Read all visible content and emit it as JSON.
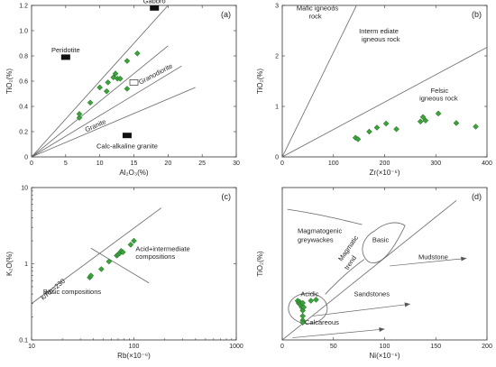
{
  "colors": {
    "point_fill": "#3aa33a",
    "point_stroke": "#1f5e1f",
    "axis": "#333333",
    "reference": "#666666"
  },
  "chart_data": [
    {
      "id": "a",
      "type": "scatter",
      "panel_label": "(a)",
      "xlabel": "Al₂O₃(%)",
      "ylabel": "TiO₂(%)",
      "xlim": [
        0,
        30
      ],
      "ylim": [
        0,
        1.2
      ],
      "xticks": [
        0,
        5,
        10,
        15,
        20,
        25,
        30
      ],
      "yticks": [
        0,
        0.2,
        0.4,
        0.6,
        0.8,
        1.0,
        1.2
      ],
      "ytick_labels": [
        "0",
        "0.2",
        "0.4",
        "0.6",
        "0.8",
        "1.0",
        "1.2"
      ],
      "points": [
        [
          7,
          0.31
        ],
        [
          7,
          0.34
        ],
        [
          8.6,
          0.43
        ],
        [
          10,
          0.55
        ],
        [
          11,
          0.52
        ],
        [
          11.2,
          0.59
        ],
        [
          12,
          0.63
        ],
        [
          12.3,
          0.66
        ],
        [
          12.6,
          0.62
        ],
        [
          13,
          0.62
        ],
        [
          14,
          0.54
        ],
        [
          14,
          0.76
        ],
        [
          15.5,
          0.82
        ]
      ],
      "lines": [
        [
          [
            0,
            0
          ],
          [
            20,
            1.2
          ]
        ],
        [
          [
            0,
            0
          ],
          [
            20,
            0.88
          ]
        ],
        [
          [
            0,
            0
          ],
          [
            22,
            0.72
          ]
        ],
        [
          [
            0,
            0
          ],
          [
            24,
            0.55
          ]
        ]
      ],
      "reference_fields": [
        {
          "label": "Gabbro",
          "x": 18,
          "y": 1.18,
          "marker": "filled-rect"
        },
        {
          "label": "Peridotite",
          "x": 5,
          "y": 0.79,
          "marker": "filled-rect"
        },
        {
          "label": "Granodiorite",
          "x": 15,
          "y": 0.59,
          "marker": "open-rect"
        },
        {
          "label": "Calc-alkaline granite",
          "x": 14,
          "y": 0.17,
          "marker": "filled-rect"
        },
        {
          "label": "Granite",
          "x": 9.5,
          "y": 0.25,
          "marker": "none"
        }
      ]
    },
    {
      "id": "b",
      "type": "scatter",
      "panel_label": "(b)",
      "xlabel": "Zr(×10⁻⁶)",
      "ylabel": "TiO₂(%)",
      "xlim": [
        0,
        400
      ],
      "ylim": [
        0,
        3
      ],
      "xticks": [
        0,
        100,
        200,
        300,
        400
      ],
      "yticks": [
        0,
        1,
        2,
        3
      ],
      "points": [
        [
          143,
          0.38
        ],
        [
          148,
          0.35
        ],
        [
          170,
          0.5
        ],
        [
          185,
          0.58
        ],
        [
          203,
          0.66
        ],
        [
          223,
          0.55
        ],
        [
          270,
          0.7
        ],
        [
          275,
          0.79
        ],
        [
          280,
          0.72
        ],
        [
          305,
          0.86
        ],
        [
          340,
          0.67
        ],
        [
          378,
          0.6
        ]
      ],
      "lines": [
        [
          [
            0,
            0
          ],
          [
            145,
            3
          ]
        ],
        [
          [
            0,
            0
          ],
          [
            400,
            2.17
          ]
        ]
      ],
      "region_labels": [
        {
          "text": "Mafic igneous",
          "x": 28,
          "y": 2.9
        },
        {
          "text": "rock",
          "x": 52,
          "y": 2.74
        },
        {
          "text": "Interm ediate",
          "x": 150,
          "y": 2.45
        },
        {
          "text": "igneous rock",
          "x": 155,
          "y": 2.29
        },
        {
          "text": "Felsic",
          "x": 290,
          "y": 1.27
        },
        {
          "text": "igneous rock",
          "x": 268,
          "y": 1.12
        }
      ]
    },
    {
      "id": "c",
      "type": "scatter",
      "panel_label": "(c)",
      "xlabel": "Rb(×10⁻⁶)",
      "ylabel": "K₂O(%)",
      "xscale": "log",
      "yscale": "log",
      "xlim": [
        10,
        1000
      ],
      "ylim": [
        0.1,
        10
      ],
      "xticks": [
        10,
        100,
        1000
      ],
      "yticks": [
        0.1,
        1,
        10
      ],
      "points": [
        [
          37,
          0.66
        ],
        [
          38,
          0.7
        ],
        [
          48,
          0.85
        ],
        [
          57,
          1.07
        ],
        [
          68,
          1.28
        ],
        [
          70,
          1.32
        ],
        [
          73,
          1.38
        ],
        [
          75,
          1.47
        ],
        [
          78,
          1.42
        ],
        [
          93,
          1.78
        ],
        [
          100,
          2.0
        ]
      ],
      "lines": [
        [
          [
            10,
            0.3
          ],
          [
            185,
            5.4
          ]
        ],
        [
          [
            38,
            1.6
          ],
          [
            140,
            0.56
          ]
        ]
      ],
      "annotations": [
        {
          "text": "Acid+intermediate",
          "x": 104,
          "y": 1.46
        },
        {
          "text": "compositions",
          "x": 104,
          "y": 1.16
        },
        {
          "text": "Basic compositions",
          "x": 13,
          "y": 0.4
        },
        {
          "text": "k/Rb=230",
          "x": 13,
          "y": 0.33,
          "rotate": -40
        }
      ]
    },
    {
      "id": "d",
      "type": "scatter",
      "panel_label": "(d)",
      "xlabel": "Ni(×10⁻⁶)",
      "ylabel": "TiO₂(%)",
      "xlim": [
        0,
        200
      ],
      "ylim": [
        0,
        1.4
      ],
      "xticks": [
        0,
        50,
        100,
        150,
        200
      ],
      "yticks": [],
      "points": [
        [
          15,
          0.36
        ],
        [
          16,
          0.34
        ],
        [
          17,
          0.35
        ],
        [
          17,
          0.33
        ],
        [
          18,
          0.32
        ],
        [
          19,
          0.3
        ],
        [
          20,
          0.34
        ],
        [
          20,
          0.27
        ],
        [
          20,
          0.22
        ],
        [
          20,
          0.18
        ],
        [
          20,
          0.16
        ],
        [
          21,
          0.3
        ],
        [
          28,
          0.36
        ],
        [
          33,
          0.37
        ]
      ],
      "lines": [
        [
          [
            0,
            0
          ],
          [
            170,
            1.28
          ]
        ]
      ],
      "ellipses": [
        {
          "cx": 25,
          "cy": 0.29,
          "rx": 19,
          "ry": 0.14
        }
      ],
      "region_labels": [
        {
          "text": "Magmatogenic",
          "x": 15,
          "y": 0.98
        },
        {
          "text": "greywackes",
          "x": 15,
          "y": 0.9
        },
        {
          "text": "Basic",
          "x": 88,
          "y": 0.9
        },
        {
          "text": "Magmatic",
          "x": 58,
          "y": 0.72,
          "rotate": -55
        },
        {
          "text": "trend",
          "x": 64,
          "y": 0.64,
          "rotate": -55
        },
        {
          "text": "Acidic",
          "x": 18,
          "y": 0.4
        },
        {
          "text": "Mudstone",
          "x": 133,
          "y": 0.74
        },
        {
          "text": "Sandstones",
          "x": 70,
          "y": 0.4
        },
        {
          "text": "Calcareous",
          "x": 22,
          "y": 0.14
        }
      ],
      "arrows": [
        {
          "from": [
            105,
            0.68
          ],
          "to": [
            180,
            0.75
          ]
        },
        {
          "from": [
            30,
            0.22
          ],
          "to": [
            125,
            0.33
          ]
        },
        {
          "from": [
            10,
            0.02
          ],
          "to": [
            100,
            0.1
          ]
        }
      ]
    }
  ]
}
